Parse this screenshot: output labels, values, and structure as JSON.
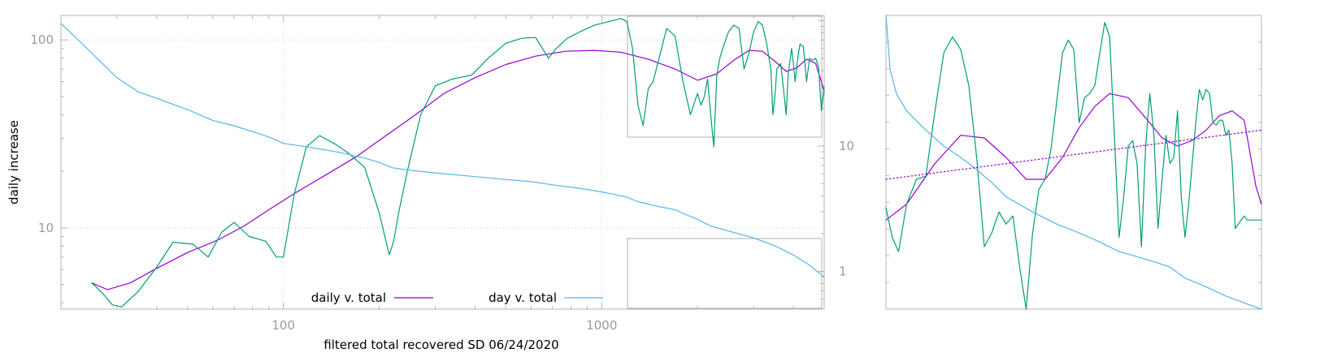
{
  "chart_data": [
    {
      "type": "line",
      "xlabel": "filtered total recovered SD 06/24/2020",
      "ylabel": "daily increase",
      "x_scale": "log",
      "y_scale": "log",
      "xlim": [
        20,
        5000
      ],
      "ylim": [
        3.7,
        135
      ],
      "y2lim": [
        0.5,
        110
      ],
      "x_ticks": [
        100,
        1000
      ],
      "x_tick_labels": [
        "100",
        "1000"
      ],
      "y_ticks": [
        10,
        100
      ],
      "y_tick_labels": [
        "10",
        "100"
      ],
      "y2_ticks": [
        1,
        10
      ],
      "y2_tick_labels": [
        "1",
        "10"
      ],
      "grid": true,
      "legend_position": "bottom",
      "series": [
        {
          "name": "daily v. total",
          "color": "#9400d3",
          "axis": "left",
          "x": [
            25,
            28,
            33,
            40,
            50,
            62,
            75,
            90,
            110,
            135,
            170,
            210,
            260,
            320,
            400,
            500,
            620,
            770,
            950,
            1150,
            1400,
            1700,
            2000,
            2300,
            2600,
            2900,
            3200,
            3500,
            3800,
            4100,
            4400,
            4700,
            4900,
            5000
          ],
          "y": [
            5.1,
            4.7,
            5.1,
            6.1,
            7.4,
            8.6,
            10.2,
            12.5,
            15.5,
            19.0,
            24.0,
            31.0,
            40.0,
            52.0,
            63.0,
            74.0,
            82.0,
            87.0,
            88.0,
            86.0,
            79.0,
            70.0,
            61.0,
            66.0,
            78.0,
            88.0,
            87.0,
            77.0,
            68.0,
            71.0,
            79.0,
            75.0,
            60.0,
            53.0
          ]
        },
        {
          "name": "",
          "color": "#009e73",
          "axis": "left",
          "x": [
            25,
            27,
            29,
            31,
            35,
            40,
            45,
            52,
            58,
            64,
            70,
            78,
            88,
            95,
            100,
            108,
            118,
            130,
            145,
            160,
            180,
            200,
            215,
            222,
            230,
            245,
            270,
            300,
            340,
            390,
            440,
            500,
            560,
            620,
            680,
            720,
            780,
            850,
            950,
            1050,
            1150,
            1200,
            1250,
            1300,
            1350,
            1400,
            1450,
            1500,
            1600,
            1700,
            1800,
            1900,
            2000,
            2050,
            2100,
            2150,
            2200,
            2250,
            2300,
            2350,
            2400,
            2500,
            2600,
            2700,
            2800,
            2900,
            3000,
            3100,
            3200,
            3300,
            3400,
            3450,
            3500,
            3550,
            3650,
            3800,
            3850,
            3950,
            4000,
            4050,
            4150,
            4200,
            4300,
            4400,
            4500,
            4600,
            4700,
            4800,
            4900,
            5000
          ],
          "y": [
            5.1,
            4.5,
            3.9,
            3.8,
            4.6,
            6.2,
            8.4,
            8.2,
            7.0,
            9.5,
            10.7,
            9.0,
            8.5,
            7.0,
            7.0,
            15.0,
            27.0,
            31.0,
            28.0,
            25.0,
            21.0,
            12.0,
            7.2,
            8.5,
            12.0,
            20.0,
            40.0,
            57.0,
            62.0,
            65.0,
            80.0,
            96.0,
            102.0,
            103.0,
            80.0,
            90.0,
            102.0,
            110.0,
            120.0,
            125.0,
            130.0,
            125.0,
            90.0,
            45.0,
            35.0,
            55.0,
            60.0,
            75.0,
            115.0,
            105.0,
            60.0,
            40.0,
            52.0,
            45.0,
            50.0,
            62.0,
            40.0,
            27.0,
            65.0,
            80.0,
            90.0,
            110.0,
            120.0,
            115.0,
            70.0,
            85.0,
            110.0,
            125.0,
            120.0,
            95.0,
            70.0,
            40.0,
            50.0,
            70.0,
            75.0,
            40.0,
            65.0,
            90.0,
            75.0,
            60.0,
            85.0,
            95.0,
            92.0,
            60.0,
            80.0,
            78.0,
            80.0,
            72.0,
            42.0,
            56.0
          ]
        },
        {
          "name": "day v. total",
          "color": "#56b4e9",
          "axis": "right",
          "x": [
            20,
            25,
            30,
            35,
            40,
            50,
            60,
            70,
            80,
            90,
            100,
            120,
            150,
            180,
            200,
            220,
            250,
            300,
            400,
            500,
            600,
            700,
            800,
            900,
            1000,
            1100,
            1200,
            1300,
            1500,
            1700,
            1800,
            2000,
            2200,
            2500,
            3000,
            3500,
            4000,
            4500,
            4800,
            5000
          ],
          "y": [
            95.0,
            55.0,
            35.0,
            27.0,
            24.0,
            19.5,
            16.0,
            14.5,
            13.0,
            11.8,
            10.5,
            9.8,
            8.9,
            8.0,
            7.4,
            6.7,
            6.4,
            6.1,
            5.7,
            5.4,
            5.2,
            4.9,
            4.7,
            4.5,
            4.3,
            4.1,
            3.9,
            3.6,
            3.3,
            3.1,
            2.9,
            2.6,
            2.3,
            2.1,
            1.85,
            1.6,
            1.35,
            1.12,
            0.98,
            0.9
          ]
        }
      ]
    },
    {
      "type": "line",
      "xlabel": "",
      "ylabel": "",
      "inset_of": "the upper-right and lower-right boxed regions of the main chart",
      "x_scale": "log",
      "y_scale": "log",
      "xlim": [
        1300,
        5000
      ],
      "ylim": [
        27,
        135
      ],
      "grid": false,
      "series": [
        {
          "name": "",
          "color": "#9400d3",
          "x": [
            1300,
            1400,
            1550,
            1700,
            1850,
            2000,
            2150,
            2300,
            2450,
            2600,
            2750,
            2900,
            3100,
            3300,
            3500,
            3700,
            3900,
            4100,
            4300,
            4500,
            4700,
            4900,
            5000
          ],
          "y": [
            44.0,
            48.0,
            60.0,
            70.0,
            69.0,
            62.0,
            55.0,
            55.0,
            62.0,
            73.0,
            82.0,
            88.0,
            86.0,
            77.0,
            69.0,
            66.0,
            68.0,
            72.0,
            78.0,
            80.0,
            76.0,
            53.0,
            48.0
          ]
        },
        {
          "name": "",
          "color": "#009e73",
          "x": [
            1300,
            1330,
            1360,
            1400,
            1450,
            1500,
            1550,
            1600,
            1650,
            1700,
            1750,
            1800,
            1850,
            1900,
            1950,
            2000,
            2050,
            2100,
            2150,
            2200,
            2250,
            2300,
            2350,
            2400,
            2450,
            2500,
            2550,
            2600,
            2650,
            2700,
            2750,
            2800,
            2850,
            2900,
            2950,
            3000,
            3050,
            3100,
            3150,
            3200,
            3250,
            3300,
            3350,
            3400,
            3450,
            3500,
            3550,
            3600,
            3650,
            3700,
            3750,
            3800,
            3850,
            3900,
            3950,
            4000,
            4050,
            4100,
            4150,
            4200,
            4250,
            4300,
            4350,
            4400,
            4450,
            4500,
            4550,
            4600,
            4650,
            4700,
            4750,
            4800,
            4850,
            4900,
            4950,
            5000
          ],
          "y": [
            47.0,
            40.0,
            37.0,
            48.0,
            55.0,
            56.0,
            80.0,
            110.0,
            120.0,
            112.0,
            92.0,
            62.0,
            38.0,
            41.0,
            46.0,
            43.0,
            45.0,
            34.0,
            27.0,
            41.0,
            52.0,
            55.0,
            65.0,
            85.0,
            110.0,
            118.0,
            112.0,
            75.0,
            86.0,
            88.0,
            92.0,
            110.0,
            130.0,
            120.0,
            70.0,
            40.0,
            50.0,
            66.0,
            68.0,
            60.0,
            38.0,
            66.0,
            88.0,
            70.0,
            42.0,
            55.0,
            70.0,
            60.0,
            62.0,
            80.0,
            50.0,
            40.0,
            48.0,
            60.0,
            75.0,
            90.0,
            85.0,
            90.0,
            88.0,
            75.0,
            74.0,
            76.0,
            76.0,
            70.0,
            72.0,
            60.0,
            42.0,
            43.0,
            44.0,
            45.0,
            44.0,
            44.0,
            44.0,
            44.0,
            44.0,
            44.0
          ]
        },
        {
          "name": "",
          "color": "#56b4e9",
          "x": [
            1300,
            1320,
            1350,
            1400,
            1500,
            1600,
            1700,
            1800,
            1900,
            2000,
            2200,
            2400,
            2600,
            2800,
            3000,
            3200,
            3400,
            3600,
            3800,
            4000,
            4200,
            4400,
            4600,
            4800,
            5000
          ],
          "y": [
            135.0,
            100.0,
            88.0,
            80.0,
            72.0,
            66.0,
            62.0,
            58.0,
            54.0,
            50.0,
            46.0,
            43.0,
            41.0,
            39.0,
            37.0,
            36.0,
            35.0,
            34.0,
            32.0,
            31.0,
            30.0,
            29.0,
            28.3,
            27.6,
            27.0
          ]
        },
        {
          "name": "",
          "color": "#9400d3",
          "style": "dotted",
          "x": [
            1300,
            5000
          ],
          "y": [
            55.0,
            72.0
          ]
        }
      ]
    }
  ]
}
